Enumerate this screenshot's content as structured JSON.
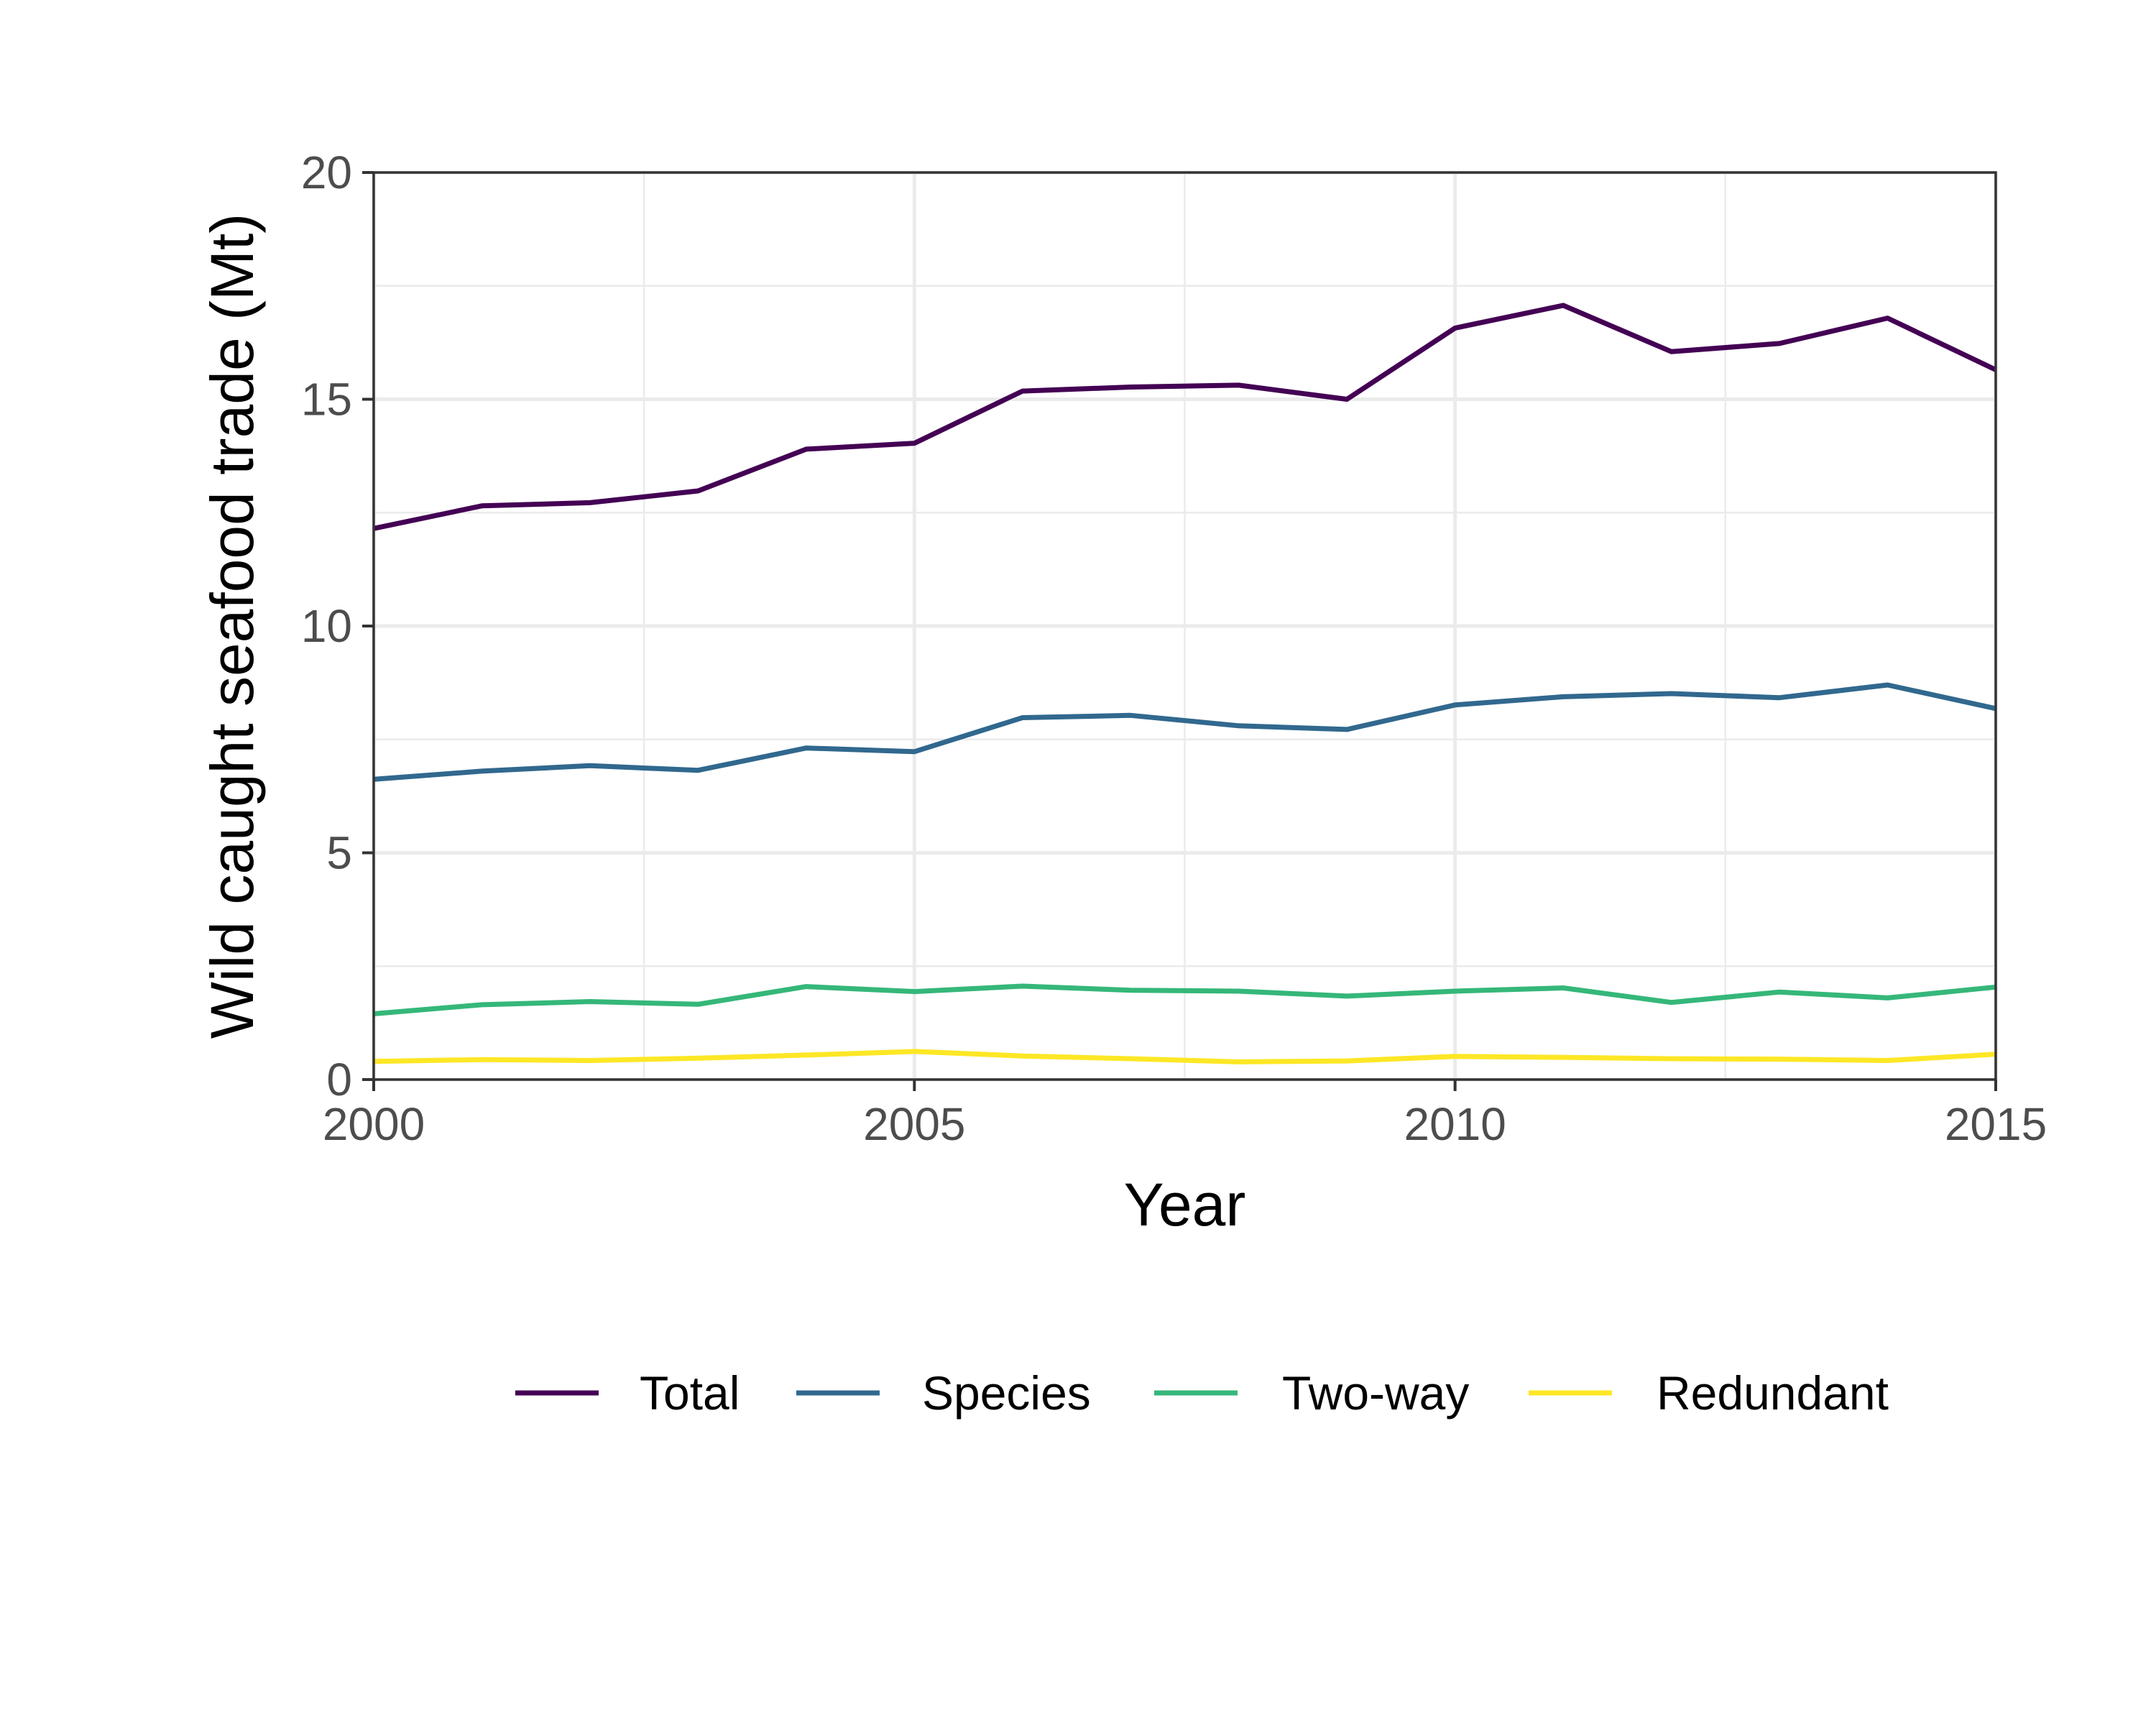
{
  "chart_data": {
    "type": "line",
    "xlabel": "Year",
    "ylabel": "Wild caught seafood trade (Mt)",
    "xlim": [
      2000,
      2015
    ],
    "ylim": [
      0,
      20
    ],
    "x_ticks": [
      "2000",
      "2005",
      "2010",
      "2015"
    ],
    "y_ticks": [
      "0",
      "5",
      "10",
      "15",
      "20"
    ],
    "grid": true,
    "legend_position": "bottom",
    "x": [
      2000,
      2001,
      2002,
      2003,
      2004,
      2005,
      2006,
      2007,
      2008,
      2009,
      2010,
      2011,
      2012,
      2013,
      2014,
      2015
    ],
    "series": [
      {
        "name": "Total",
        "color": "#440154",
        "values": [
          12.15,
          12.65,
          12.72,
          12.98,
          13.9,
          14.03,
          15.18,
          15.27,
          15.31,
          15.0,
          16.57,
          17.07,
          16.05,
          16.23,
          16.79,
          15.65
        ]
      },
      {
        "name": "Species",
        "color": "#31688e",
        "values": [
          6.62,
          6.8,
          6.92,
          6.82,
          7.31,
          7.23,
          7.98,
          8.03,
          7.8,
          7.72,
          8.26,
          8.44,
          8.51,
          8.42,
          8.7,
          8.18
        ]
      },
      {
        "name": "Two-way",
        "color": "#35b779",
        "values": [
          1.45,
          1.65,
          1.72,
          1.66,
          2.05,
          1.94,
          2.06,
          1.97,
          1.95,
          1.84,
          1.95,
          2.02,
          1.7,
          1.93,
          1.8,
          2.04
        ]
      },
      {
        "name": "Redundant",
        "color": "#fde725",
        "values": [
          0.4,
          0.44,
          0.42,
          0.47,
          0.54,
          0.62,
          0.52,
          0.46,
          0.39,
          0.41,
          0.51,
          0.49,
          0.46,
          0.45,
          0.42,
          0.56
        ]
      }
    ]
  }
}
